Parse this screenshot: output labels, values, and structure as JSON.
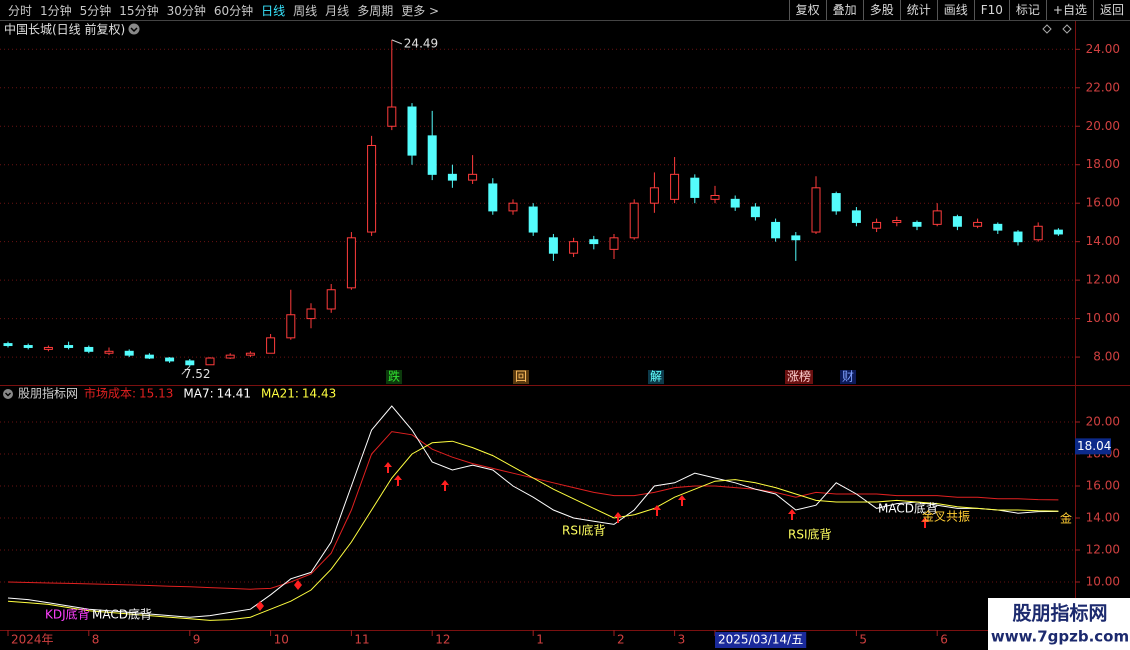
{
  "toolbar": {
    "periods": [
      "分时",
      "1分钟",
      "5分钟",
      "15分钟",
      "30分钟",
      "60分钟",
      "日线",
      "周线",
      "月线",
      "多周期",
      "更多 >"
    ],
    "active": 6,
    "tools": [
      "复权",
      "叠加",
      "多股",
      "统计",
      "画线",
      "F10",
      "标记",
      "+自选",
      "返回"
    ]
  },
  "chart_data": [
    {
      "type": "candlestick",
      "title": "中国长城(日线 前复权)",
      "up_color": "#ff3c3c",
      "down_color": "#54fcfc",
      "candles": [
        [
          8.7,
          8.8,
          8.5,
          8.6
        ],
        [
          8.6,
          8.7,
          8.4,
          8.5
        ],
        [
          8.4,
          8.6,
          8.3,
          8.5
        ],
        [
          8.6,
          8.8,
          8.4,
          8.5
        ],
        [
          8.5,
          8.6,
          8.2,
          8.3
        ],
        [
          8.2,
          8.5,
          8.1,
          8.3
        ],
        [
          8.3,
          8.4,
          8.0,
          8.1
        ],
        [
          8.1,
          8.2,
          7.9,
          7.95
        ],
        [
          7.95,
          8.0,
          7.7,
          7.8
        ],
        [
          7.8,
          7.9,
          7.52,
          7.6
        ],
        [
          7.6,
          8.0,
          7.6,
          7.95
        ],
        [
          7.95,
          8.2,
          7.9,
          8.1
        ],
        [
          8.1,
          8.3,
          8.0,
          8.2
        ],
        [
          8.2,
          9.2,
          8.2,
          9.0
        ],
        [
          9.0,
          11.5,
          8.9,
          10.2
        ],
        [
          10.0,
          10.8,
          9.5,
          10.5
        ],
        [
          10.5,
          11.8,
          10.3,
          11.5
        ],
        [
          11.6,
          14.5,
          11.5,
          14.2
        ],
        [
          14.5,
          19.5,
          14.3,
          19.0
        ],
        [
          20.0,
          24.49,
          19.8,
          21.0
        ],
        [
          21.0,
          21.2,
          18.0,
          18.5
        ],
        [
          19.5,
          20.8,
          17.2,
          17.5
        ],
        [
          17.5,
          18.0,
          16.8,
          17.2
        ],
        [
          17.2,
          18.5,
          17.0,
          17.5
        ],
        [
          17.0,
          17.3,
          15.4,
          15.6
        ],
        [
          15.6,
          16.2,
          15.4,
          16.0
        ],
        [
          15.8,
          16.0,
          14.3,
          14.5
        ],
        [
          14.2,
          14.4,
          13.0,
          13.4
        ],
        [
          13.4,
          14.2,
          13.2,
          14.0
        ],
        [
          14.1,
          14.3,
          13.6,
          13.9
        ],
        [
          13.6,
          14.4,
          13.1,
          14.2
        ],
        [
          14.2,
          16.2,
          14.1,
          16.0
        ],
        [
          16.0,
          17.6,
          15.5,
          16.8
        ],
        [
          16.2,
          18.4,
          16.0,
          17.5
        ],
        [
          17.3,
          17.5,
          16.0,
          16.3
        ],
        [
          16.2,
          16.9,
          16.0,
          16.4
        ],
        [
          16.2,
          16.4,
          15.6,
          15.8
        ],
        [
          15.8,
          16.0,
          15.1,
          15.3
        ],
        [
          15.0,
          15.2,
          14.0,
          14.2
        ],
        [
          14.3,
          14.5,
          13.0,
          14.1
        ],
        [
          14.5,
          17.4,
          14.4,
          16.8
        ],
        [
          16.5,
          16.6,
          15.4,
          15.6
        ],
        [
          15.6,
          15.8,
          14.8,
          15.0
        ],
        [
          14.7,
          15.2,
          14.5,
          15.0
        ],
        [
          15.0,
          15.3,
          14.8,
          15.1
        ],
        [
          15.0,
          15.1,
          14.6,
          14.8
        ],
        [
          14.9,
          16.0,
          14.8,
          15.6
        ],
        [
          15.3,
          15.4,
          14.6,
          14.8
        ],
        [
          14.8,
          15.2,
          14.7,
          15.0
        ],
        [
          14.9,
          15.0,
          14.4,
          14.6
        ],
        [
          14.5,
          14.6,
          13.8,
          14.0
        ],
        [
          14.1,
          15.0,
          14.0,
          14.8
        ],
        [
          14.6,
          14.7,
          14.3,
          14.4
        ]
      ],
      "ylim": [
        6.6,
        24.9
      ],
      "yticks": [
        {
          "value": 8,
          "label": "8.00"
        },
        {
          "value": 10,
          "label": "10.00"
        },
        {
          "value": 12,
          "label": "12.00"
        },
        {
          "value": 14,
          "label": "14.00"
        },
        {
          "value": 16,
          "label": "16.00"
        },
        {
          "value": 18,
          "label": "18.00"
        },
        {
          "value": 20,
          "label": "20.00"
        },
        {
          "value": 22,
          "label": "22.00"
        },
        {
          "value": 24,
          "label": "24.00"
        }
      ],
      "grid": true,
      "events": [
        "跌",
        "回",
        "解",
        "涨榜",
        "财"
      ]
    },
    {
      "type": "line",
      "title": "股朋指标网",
      "categories": [
        "2024年",
        null,
        null,
        null,
        "8",
        null,
        null,
        null,
        null,
        "9",
        null,
        null,
        null,
        "10",
        null,
        null,
        null,
        "11",
        null,
        null,
        null,
        "12",
        null,
        null,
        null,
        null,
        "1",
        null,
        null,
        null,
        "2",
        null,
        null,
        "3",
        null,
        "2025/03/14/五",
        null,
        null,
        null,
        null,
        null,
        null,
        "5",
        null,
        null,
        null,
        "6",
        null,
        null,
        null,
        null,
        null,
        null
      ],
      "highlight_category": 35,
      "series": [
        {
          "name": "市场成本:",
          "color": "#e02020",
          "values": [
            10.0,
            9.97,
            9.94,
            9.91,
            9.88,
            9.85,
            9.82,
            9.78,
            9.74,
            9.7,
            9.65,
            9.6,
            9.55,
            9.6,
            10.0,
            10.5,
            11.8,
            14.5,
            18.0,
            19.4,
            19.2,
            18.3,
            17.8,
            17.4,
            17.1,
            16.8,
            16.5,
            16.2,
            15.9,
            15.6,
            15.4,
            15.4,
            15.6,
            15.9,
            16.0,
            16.0,
            15.9,
            15.8,
            15.6,
            15.3,
            15.6,
            15.5,
            15.5,
            15.5,
            15.4,
            15.4,
            15.4,
            15.3,
            15.3,
            15.2,
            15.2,
            15.15,
            15.13
          ]
        },
        {
          "name": "MA7:",
          "color": "#ffffff",
          "values": [
            9.0,
            8.9,
            8.7,
            8.5,
            8.3,
            8.2,
            8.1,
            8.0,
            7.9,
            7.8,
            7.9,
            8.1,
            8.3,
            9.2,
            10.2,
            10.6,
            12.5,
            16.0,
            19.5,
            21.0,
            19.5,
            17.5,
            17.0,
            17.3,
            17.0,
            16.0,
            15.3,
            14.5,
            14.0,
            13.8,
            13.6,
            14.5,
            16.0,
            16.2,
            16.8,
            16.5,
            16.2,
            15.8,
            15.5,
            14.5,
            14.8,
            16.2,
            15.5,
            14.6,
            14.9,
            15.0,
            14.8,
            14.6,
            14.6,
            14.5,
            14.3,
            14.4,
            14.41
          ]
        },
        {
          "name": "MA21:",
          "color": "#ffff40",
          "values": [
            8.8,
            8.7,
            8.6,
            8.4,
            8.2,
            8.1,
            8.0,
            7.9,
            7.8,
            7.7,
            7.6,
            7.65,
            7.8,
            8.3,
            8.8,
            9.5,
            10.8,
            12.5,
            14.5,
            16.5,
            18.0,
            18.7,
            18.8,
            18.4,
            17.9,
            17.2,
            16.5,
            15.8,
            15.2,
            14.6,
            14.0,
            14.2,
            14.6,
            15.3,
            15.8,
            16.3,
            16.4,
            16.2,
            15.9,
            15.5,
            15.1,
            15.0,
            15.0,
            15.0,
            15.1,
            15.0,
            14.9,
            14.7,
            14.6,
            14.5,
            14.5,
            14.45,
            14.43
          ]
        }
      ],
      "ylim": [
        7,
        22
      ],
      "yticks": [
        {
          "value": 10,
          "label": "10.00"
        },
        {
          "value": 12,
          "label": "12.00"
        },
        {
          "value": 14,
          "label": "14.00"
        },
        {
          "value": 16,
          "label": "16.00"
        },
        {
          "value": 18,
          "label": "18.00"
        },
        {
          "value": 20,
          "label": "20.00"
        }
      ],
      "grid": true,
      "cursor_value": 18.04,
      "signals": [
        "KDJ底背",
        "MACD底背",
        "RSI底背",
        "RSI底背",
        "MACD底背",
        "金叉共振",
        "金"
      ]
    }
  ],
  "watermark": {
    "title": "股朋指标网",
    "url": "www.7gpzb.com"
  }
}
